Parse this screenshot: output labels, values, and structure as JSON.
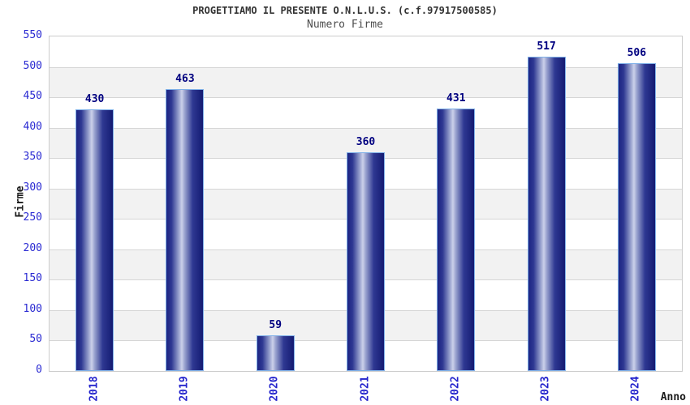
{
  "chart_data": {
    "type": "bar",
    "title": "PROGETTIAMO IL PRESENTE O.N.L.U.S. (c.f.97917500585)",
    "subtitle": "Numero Firme",
    "xlabel": "Anno",
    "ylabel": "Firme",
    "categories": [
      "2018",
      "2019",
      "2020",
      "2021",
      "2022",
      "2023",
      "2024"
    ],
    "values": [
      430,
      463,
      59,
      360,
      431,
      517,
      506
    ],
    "yticks": [
      0,
      50,
      100,
      150,
      200,
      250,
      300,
      350,
      400,
      450,
      500,
      550
    ],
    "ylim": [
      0,
      550
    ],
    "grid": "horizontal gridlines with alternating background bands",
    "legend": "none",
    "colors": {
      "bar_edge_dark": "#1c2483",
      "bar_highlight": "#ccd1ea",
      "bar_border": "#7fb0e8",
      "band_gray": "#f2f2f2",
      "gridline": "#d6d6d6",
      "plot_border": "#cccccc",
      "tick_label_blue": "#2a2ad2",
      "value_label_navy": "#000080",
      "title_color": "#333333",
      "subtitle_color": "#4d4d4d"
    }
  }
}
